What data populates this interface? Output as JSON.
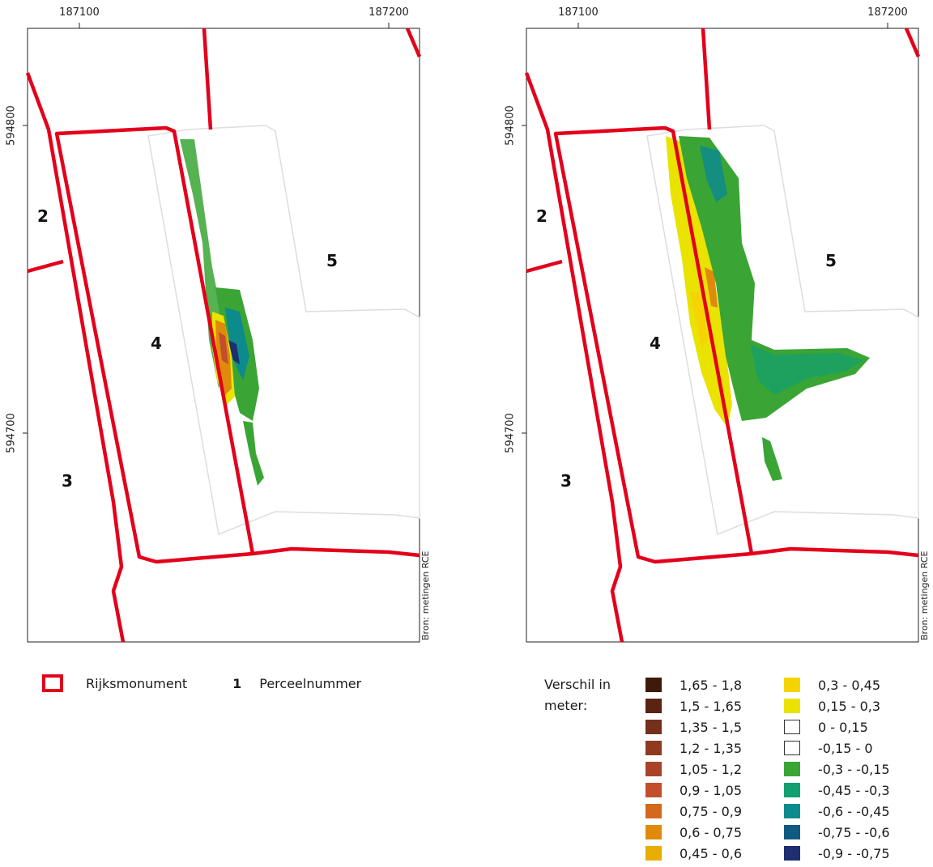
{
  "maps": [
    {
      "x_ticks": [
        "187100",
        "187200"
      ],
      "y_ticks": [
        "594800",
        "594700"
      ],
      "parcels": [
        "2",
        "4",
        "5",
        "3"
      ],
      "credit": "Bron: metingen RCE"
    },
    {
      "x_ticks": [
        "187100",
        "187200"
      ],
      "y_ticks": [
        "594800",
        "594700"
      ],
      "parcels": [
        "2",
        "4",
        "5",
        "3"
      ],
      "credit": "Bron: metingen RCE"
    }
  ],
  "legend_left": {
    "rijksmonument_label": "Rijksmonument",
    "perceel_symbol": "1",
    "perceel_label": "Perceelnummer"
  },
  "legend_right": {
    "title": "Verschil in meter:",
    "classes": [
      {
        "label": "1,65 - 1,8",
        "color": "#3d1a0a"
      },
      {
        "label": "1,5 - 1,65",
        "color": "#5a2410"
      },
      {
        "label": "1,35 - 1,5",
        "color": "#74301a"
      },
      {
        "label": "1,2 - 1,35",
        "color": "#8f3a20"
      },
      {
        "label": "1,05 - 1,2",
        "color": "#a8432a"
      },
      {
        "label": "0,9 - 1,05",
        "color": "#c24e2c"
      },
      {
        "label": "0,75 - 0,9",
        "color": "#d4681c"
      },
      {
        "label": "0,6 - 0,75",
        "color": "#e08a0c"
      },
      {
        "label": "0,45 - 0,6",
        "color": "#e8ad00"
      },
      {
        "label": "0,3 - 0,45",
        "color": "#f5d400"
      },
      {
        "label": "0,15 - 0,3",
        "color": "#eae200"
      },
      {
        "label": "0 - 0,15",
        "color": "#ffffff"
      },
      {
        "label": "-0,15 - 0",
        "color": "#ffffff"
      },
      {
        "label": "-0,3 - -0,15",
        "color": "#3aa535"
      },
      {
        "label": "-0,45 - -0,3",
        "color": "#13a070"
      },
      {
        "label": "-0,6 - -0,45",
        "color": "#0d8a8c"
      },
      {
        "label": "-0,75 - -0,6",
        "color": "#0f5a80"
      },
      {
        "label": "-0,9 - -0,75",
        "color": "#1e2e70"
      }
    ]
  },
  "colors": {
    "boundary": "#e3001b",
    "survey_area": "#dddddd"
  }
}
